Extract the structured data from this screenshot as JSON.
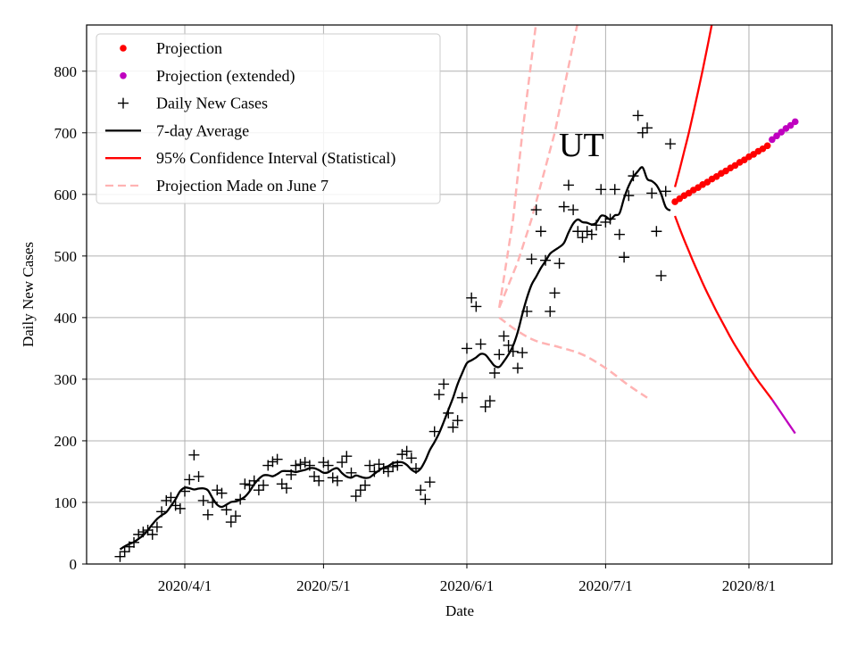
{
  "chart_data": {
    "type": "scatter",
    "title": "UT",
    "xlabel": "Date",
    "ylabel": "Daily New Cases",
    "ylim": [
      0,
      875
    ],
    "yticks": [
      0,
      100,
      200,
      300,
      400,
      500,
      600,
      700,
      800
    ],
    "xticks": [
      {
        "date": "2020-04-01",
        "label": "2020/4/1"
      },
      {
        "date": "2020-05-01",
        "label": "2020/5/1"
      },
      {
        "date": "2020-06-01",
        "label": "2020/6/1"
      },
      {
        "date": "2020-07-01",
        "label": "2020/7/1"
      },
      {
        "date": "2020-08-01",
        "label": "2020/8/1"
      }
    ],
    "xlim": [
      "2020-03-10",
      "2020-08-20"
    ],
    "grid": true,
    "legend_position": "top-left",
    "legend": [
      {
        "label": "Projection",
        "kind": "dot",
        "color": "#ff0000"
      },
      {
        "label": "Projection (extended)",
        "kind": "dot",
        "color": "#bf00bf"
      },
      {
        "label": "Daily New Cases",
        "kind": "plus",
        "color": "#000000"
      },
      {
        "label": "7-day Average",
        "kind": "line",
        "color": "#000000"
      },
      {
        "label": "95% Confidence Interval (Statistical)",
        "kind": "line",
        "color": "#ff0000"
      },
      {
        "label": "Projection Made on June 7",
        "kind": "dash",
        "color": "#ffb3b3"
      }
    ],
    "daily_new_cases": {
      "start": "2020-03-18",
      "values": [
        12,
        20,
        28,
        35,
        48,
        52,
        55,
        48,
        60,
        85,
        103,
        108,
        95,
        90,
        118,
        137,
        177,
        142,
        103,
        80,
        100,
        120,
        115,
        88,
        68,
        78,
        105,
        130,
        128,
        135,
        120,
        128,
        160,
        166,
        170,
        130,
        123,
        145,
        160,
        162,
        165,
        160,
        142,
        135,
        165,
        160,
        140,
        135,
        165,
        175,
        148,
        110,
        120,
        128,
        160,
        150,
        162,
        155,
        150,
        158,
        160,
        178,
        183,
        172,
        155,
        120,
        105,
        133,
        215,
        275,
        292,
        245,
        222,
        233,
        270,
        350,
        432,
        418,
        357,
        255,
        265,
        310,
        340,
        370,
        355,
        345,
        318,
        343,
        410,
        495,
        575,
        540,
        493,
        410,
        440,
        488,
        580,
        615,
        575,
        540,
        530,
        540,
        535,
        550,
        608,
        555,
        560,
        608,
        535,
        498,
        598,
        630,
        728,
        700,
        708,
        602,
        540,
        468,
        605,
        682
      ]
    },
    "average_window_days": 7,
    "projection": {
      "start": "2020-07-16",
      "values": [
        588,
        593,
        598,
        602,
        607,
        611,
        616,
        620,
        625,
        629,
        634,
        638,
        643,
        647,
        652,
        656,
        661,
        665,
        670,
        674,
        679
      ]
    },
    "projection_extended": {
      "start": "2020-08-06",
      "values": [
        689,
        695,
        701,
        707,
        712,
        718
      ]
    },
    "ci_upper": {
      "start": "2020-07-16",
      "values": [
        612,
        640,
        670,
        700,
        733,
        767,
        802,
        839,
        877,
        918
      ]
    },
    "ci_lower": {
      "start": "2020-07-16",
      "values": [
        565,
        545,
        526,
        508,
        490,
        473,
        456,
        440,
        425,
        410,
        396,
        382,
        368,
        355,
        343,
        331,
        319,
        308,
        297,
        287,
        277,
        267
      ]
    },
    "ci_lower_extended": {
      "start": "2020-08-06",
      "values": [
        267,
        256,
        245,
        234,
        223,
        212
      ]
    },
    "june7_projection": {
      "dates": [
        "2020-06-08",
        "2020-06-11",
        "2020-06-13",
        "2020-06-16"
      ],
      "upper_fast": [
        416,
        560,
        700,
        880
      ],
      "dates_mid": [
        "2020-06-08",
        "2020-06-12",
        "2020-06-15",
        "2020-06-20",
        "2020-06-25"
      ],
      "upper_slow": [
        416,
        490,
        560,
        700,
        880
      ],
      "dates_low": [
        "2020-06-08",
        "2020-06-12",
        "2020-06-16",
        "2020-06-21",
        "2020-06-26",
        "2020-07-01",
        "2020-07-06",
        "2020-07-10"
      ],
      "lower": [
        400,
        378,
        362,
        352,
        340,
        318,
        290,
        270
      ]
    }
  }
}
